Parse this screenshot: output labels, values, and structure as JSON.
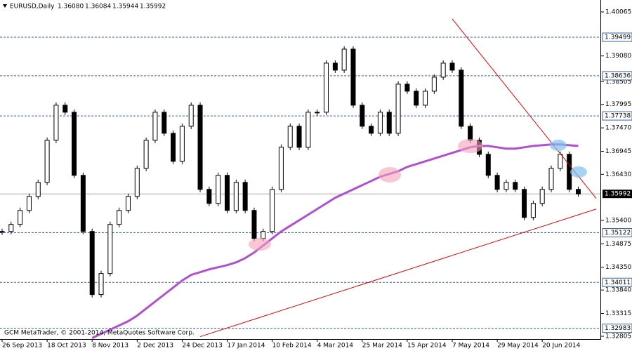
{
  "chart_data": {
    "type": "candlestick",
    "title": "EURUSD,Daily",
    "ohlc_labels": [
      "1.36080",
      "1.36084",
      "1.35944",
      "1.35992"
    ],
    "copyright": "GCM MetaTrader, © 2001-2014, MetaQuotes Software Corp.",
    "categories": [
      "26 Sep 2013",
      null,
      null,
      null,
      null,
      "18 Oct 2013",
      null,
      null,
      null,
      null,
      "8 Nov 2013",
      null,
      null,
      null,
      null,
      "2 Dec 2013",
      null,
      null,
      null,
      null,
      "24 Dec 2013",
      null,
      null,
      null,
      null,
      "17 Jan 2014",
      null,
      null,
      null,
      null,
      "10 Feb 2014",
      null,
      null,
      null,
      null,
      "4 Mar 2014",
      null,
      null,
      null,
      null,
      "25 Mar 2014",
      null,
      null,
      null,
      null,
      "15 Apr 2014",
      null,
      null,
      null,
      null,
      "7 May 2014",
      null,
      null,
      null,
      null,
      "29 May 2014",
      null,
      null,
      null,
      null,
      "20 Jun 2014",
      null,
      null,
      null,
      null
    ],
    "values": [
      1.35151,
      1.35308,
      1.35622,
      1.35936,
      1.3625,
      1.37192,
      1.37977,
      1.3782,
      1.36407,
      1.35151,
      1.33738,
      1.34209,
      1.35308,
      1.35622,
      1.35936,
      1.36564,
      1.37192,
      1.3782,
      1.37349,
      1.36721,
      1.37506,
      1.37977,
      1.36093,
      1.35779,
      1.36407,
      1.35622,
      1.3625,
      1.35622,
      1.34994,
      1.35151,
      1.36093,
      1.37035,
      1.37506,
      1.37035,
      1.3782,
      1.3782,
      1.38919,
      1.38762,
      1.39233,
      1.37977,
      1.37506,
      1.37349,
      1.3782,
      1.37349,
      1.38448,
      1.38291,
      1.37977,
      1.38291,
      1.38605,
      1.38919,
      1.38762,
      1.37506,
      1.37192,
      1.36878,
      1.36407,
      1.36093,
      1.3625,
      1.36093,
      1.35465,
      1.35779,
      1.36093,
      1.36564,
      1.36878,
      1.36093,
      1.35992
    ],
    "moving_average": {
      "color": "#b050d0",
      "values": [
        null,
        null,
        null,
        null,
        null,
        null,
        null,
        null,
        null,
        null,
        1.32765,
        1.32859,
        1.32953,
        1.33047,
        1.33141,
        1.33267,
        1.33424,
        1.33581,
        1.33738,
        1.33895,
        1.34052,
        1.34178,
        1.3424,
        1.34303,
        1.3435,
        1.34397,
        1.3446,
        1.34554,
        1.3468,
        1.34837,
        1.34994,
        1.35151,
        1.35277,
        1.35402,
        1.35528,
        1.35653,
        1.35779,
        1.35905,
        1.35999,
        1.36093,
        1.36187,
        1.36281,
        1.36376,
        1.36438,
        1.36501,
        1.36595,
        1.36658,
        1.36721,
        1.36784,
        1.36847,
        1.36909,
        1.36972,
        1.37035,
        1.37066,
        1.37066,
        1.37035,
        1.37004,
        1.37004,
        1.37035,
        1.37066,
        1.37082,
        1.37098,
        1.37098,
        1.37082,
        1.37066
      ]
    },
    "trendlines": [
      {
        "color": "#e00000",
        "start": [
          50,
          1.39908
        ],
        "end": [
          66,
          1.35889
        ]
      },
      {
        "color": "#e00000",
        "start": [
          22,
          1.32796
        ],
        "end": [
          66,
          1.35653
        ]
      }
    ],
    "levels": [
      1.39499,
      1.38636,
      1.37738,
      1.35122,
      1.34011,
      1.32983
    ],
    "level_color": "#3a5fb0",
    "last_price": 1.35992,
    "ylim": [
      1.32805,
      1.40065
    ],
    "yticks": [
      1.40065,
      {
        "value": 1.3908,
        "label": "1.39080"
      },
      1.38505,
      1.37995,
      {
        "value": 1.3747,
        "label": "1.37470"
      },
      1.36945,
      {
        "value": 1.3643,
        "label": "1.36430"
      },
      {
        "value": 1.354,
        "label": "1.35400"
      },
      1.34875,
      {
        "value": 1.3435,
        "label": "1.34350"
      },
      {
        "value": 1.3384,
        "label": "1.33840"
      },
      1.33315,
      1.32805
    ]
  }
}
